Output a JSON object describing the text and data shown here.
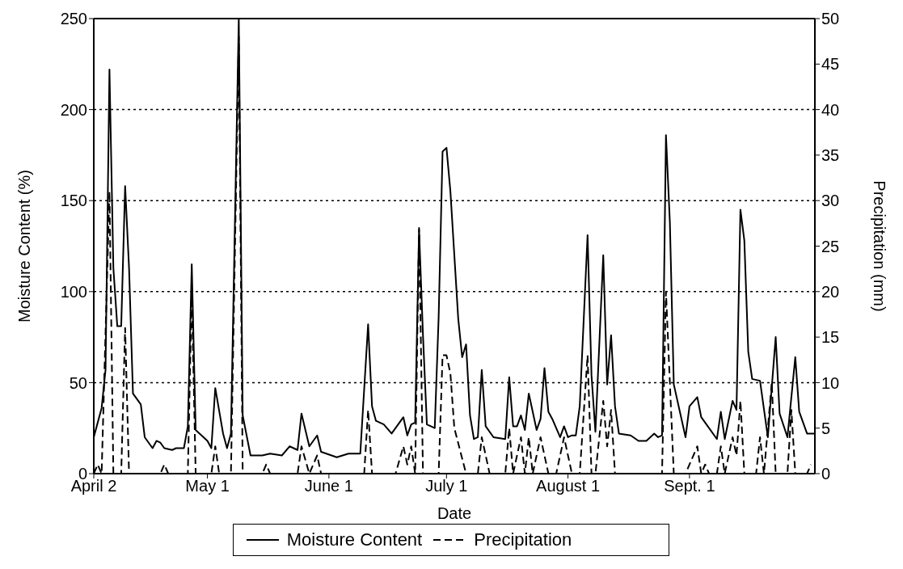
{
  "chart_data": {
    "type": "line",
    "xlabel": "Date",
    "ylabel": "Moisture Content (%)",
    "y2label": "Precipitation (mm)",
    "xlim": [
      "--04-02",
      "--10-03"
    ],
    "xticks": [
      {
        "value": "--04-02",
        "label": "April 2"
      },
      {
        "value": "--05-01",
        "label": "May 1"
      },
      {
        "value": "--06-01",
        "label": "June 1"
      },
      {
        "value": "--07-01",
        "label": "July 1"
      },
      {
        "value": "--08-01",
        "label": "August 1"
      },
      {
        "value": "--09-01",
        "label": "Sept. 1"
      }
    ],
    "ylim": [
      0,
      250
    ],
    "yticks": [
      0,
      50,
      100,
      150,
      200,
      250
    ],
    "y2lim": [
      0,
      50
    ],
    "y2ticks": [
      0,
      5,
      10,
      15,
      20,
      25,
      30,
      35,
      40,
      45,
      50
    ],
    "grid": "y",
    "legend": "bottom",
    "series": [
      {
        "name": "Moisture Content",
        "color": "#000000",
        "line_style": "solid",
        "x": [
          "--04-02",
          "--04-04",
          "--04-05",
          "--04-06",
          "--04-07",
          "--04-08",
          "--04-09",
          "--04-10",
          "--04-11",
          "--04-12",
          "--04-14",
          "--04-15",
          "--04-17",
          "--04-18",
          "--04-19",
          "--04-20",
          "--04-22",
          "--04-23",
          "--04-25",
          "--04-26",
          "--04-27",
          "--04-28",
          "--04-30",
          "--05-01",
          "--05-02",
          "--05-03",
          "--05-05",
          "--05-06",
          "--05-07",
          "--05-09",
          "--05-10",
          "--05-12",
          "--05-15",
          "--05-17",
          "--05-20",
          "--05-22",
          "--05-24",
          "--05-25",
          "--05-27",
          "--05-29",
          "--05-30",
          "--06-03",
          "--06-06",
          "--06-09",
          "--06-11",
          "--06-12",
          "--06-13",
          "--06-15",
          "--06-17",
          "--06-20",
          "--06-21",
          "--06-22",
          "--06-23",
          "--06-24",
          "--06-25",
          "--06-26",
          "--06-28",
          "--06-29",
          "--06-30",
          "--07-01",
          "--07-02",
          "--07-04",
          "--07-05",
          "--07-06",
          "--07-07",
          "--07-08",
          "--07-09",
          "--07-10",
          "--07-11",
          "--07-13",
          "--07-16",
          "--07-17",
          "--07-18",
          "--07-19",
          "--07-20",
          "--07-21",
          "--07-22",
          "--07-24",
          "--07-25",
          "--07-26",
          "--07-27",
          "--07-28",
          "--07-30",
          "--07-31",
          "--08-01",
          "--08-02",
          "--08-03",
          "--08-04",
          "--08-06",
          "--08-07",
          "--08-08",
          "--08-10",
          "--08-11",
          "--08-12",
          "--08-13",
          "--08-14",
          "--08-17",
          "--08-19",
          "--08-21",
          "--08-23",
          "--08-24",
          "--08-25",
          "--08-26",
          "--08-27",
          "--08-28",
          "--08-31",
          "--09-01",
          "--09-03",
          "--09-04",
          "--09-05",
          "--09-08",
          "--09-09",
          "--09-10",
          "--09-12",
          "--09-13",
          "--09-14",
          "--09-15",
          "--09-16",
          "--09-17",
          "--09-19",
          "--09-21",
          "--09-23",
          "--09-24",
          "--09-26",
          "--09-28",
          "--09-29",
          "--10-01",
          "--10-03"
        ],
        "values": [
          20,
          36,
          57,
          222,
          113,
          81,
          81,
          158,
          113,
          44,
          38,
          20,
          14,
          18,
          17,
          14,
          13,
          14,
          14,
          26,
          115,
          24,
          20,
          18,
          14,
          47,
          22,
          14,
          22,
          250,
          32,
          10,
          10,
          11,
          10,
          15,
          13,
          33,
          15,
          21,
          12,
          9,
          11,
          11,
          82,
          37,
          29,
          27,
          22,
          31,
          21,
          27,
          28,
          134,
          76,
          27,
          25,
          86,
          177,
          179,
          155,
          85,
          64,
          71,
          32,
          19,
          20,
          57,
          26,
          20,
          19,
          53,
          26,
          26,
          32,
          24,
          44,
          24,
          30,
          58,
          34,
          30,
          20,
          26,
          20,
          21,
          21,
          37,
          131,
          54,
          23,
          120,
          49,
          76,
          37,
          22,
          21,
          18,
          18,
          22,
          20,
          21,
          186,
          138,
          49,
          20,
          37,
          42,
          31,
          28,
          19,
          34,
          19,
          40,
          35,
          145,
          128,
          67,
          52,
          51,
          20,
          75,
          33,
          20,
          64,
          34,
          22,
          22
        ]
      },
      {
        "name": "Precipitation",
        "color": "#000000",
        "line_style": "dashed",
        "axis": "y2",
        "x": [
          "--04-02",
          "--04-03",
          "--04-04",
          "--04-06",
          "--04-07",
          "--04-09",
          "--04-10",
          "--04-11",
          "--04-19",
          "--04-20",
          "--04-21",
          "--04-26",
          "--04-27",
          "--04-28",
          "--05-02",
          "--05-03",
          "--05-04",
          "--05-07",
          "--05-09",
          "--05-10",
          "--05-15",
          "--05-16",
          "--05-17",
          "--05-24",
          "--05-25",
          "--05-27",
          "--05-29",
          "--05-30",
          "--06-10",
          "--06-11",
          "--06-12",
          "--06-18",
          "--06-20",
          "--06-21",
          "--06-22",
          "--06-23",
          "--06-24",
          "--06-25",
          "--06-29",
          "--06-30",
          "--07-01",
          "--07-02",
          "--07-03",
          "--07-06",
          "--07-09",
          "--07-10",
          "--07-12",
          "--07-16",
          "--07-17",
          "--07-18",
          "--07-20",
          "--07-21",
          "--07-22",
          "--07-23",
          "--07-25",
          "--07-27",
          "--07-29",
          "--07-31",
          "--08-02",
          "--08-04",
          "--08-06",
          "--08-07",
          "--08-08",
          "--08-10",
          "--08-11",
          "--08-12",
          "--08-13",
          "--08-25",
          "--08-26",
          "--08-28",
          "--08-31",
          "--09-03",
          "--09-04",
          "--09-05",
          "--09-06",
          "--09-08",
          "--09-09",
          "--09-10",
          "--09-12",
          "--09-13",
          "--09-14",
          "--09-15",
          "--09-18",
          "--09-19",
          "--09-20",
          "--09-22",
          "--09-23",
          "--09-26",
          "--09-27",
          "--09-28",
          "--10-01",
          "--10-02"
        ],
        "values": [
          0,
          1,
          0,
          31,
          0,
          0,
          16,
          0,
          0,
          1,
          0,
          0,
          20,
          0,
          0,
          3,
          0,
          0,
          48,
          0,
          0,
          1,
          0,
          0,
          3,
          0,
          2,
          0,
          0,
          7,
          0,
          0,
          3,
          1,
          3,
          0,
          27,
          0,
          0,
          13,
          13,
          11,
          5,
          0,
          0,
          4,
          0,
          0,
          5,
          0,
          4,
          0,
          4,
          0,
          4,
          0,
          0,
          4,
          0,
          0,
          13,
          0,
          0,
          8,
          3,
          7,
          0,
          0,
          20,
          0,
          0,
          3,
          0,
          1,
          0,
          0,
          3,
          0,
          4,
          2,
          8,
          0,
          0,
          4,
          0,
          10,
          0,
          0,
          7,
          0,
          0,
          1
        ]
      }
    ]
  }
}
